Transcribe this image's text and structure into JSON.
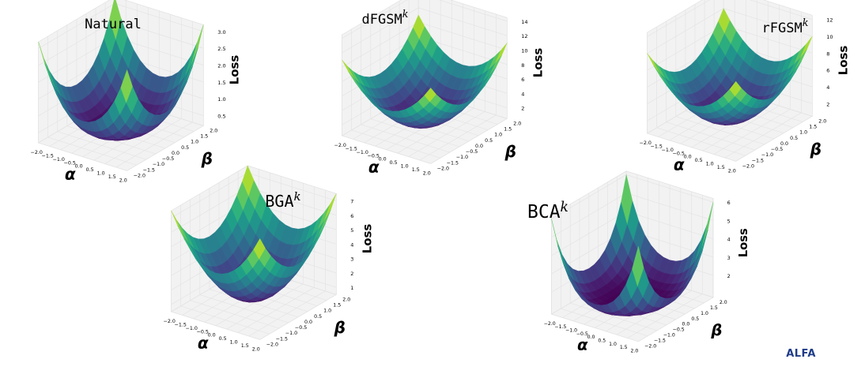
{
  "figure": {
    "logo_text": "ALFA"
  },
  "colors": {
    "viridis": [
      "#440154",
      "#482878",
      "#3e4989",
      "#31688e",
      "#26828e",
      "#1f9e89",
      "#35b779",
      "#6ece58",
      "#b5de2b",
      "#fde725"
    ]
  },
  "chart_data": [
    {
      "type": "surface3d",
      "title": "Natural",
      "title_sup": "",
      "xlabel": "α",
      "ylabel": "β",
      "zlabel": "Loss",
      "x_range": [
        -2,
        2
      ],
      "y_range": [
        -2,
        2
      ],
      "z_range": [
        0.2,
        3.2
      ],
      "x_ticks": [
        "−2.0",
        "−1.5",
        "−1.0",
        "−0.5",
        "0.0",
        "0.5",
        "1.0",
        "1.5",
        "2.0"
      ],
      "y_ticks": [
        "−2.0",
        "−1.5",
        "−1.0",
        "−0.5",
        "0.0",
        "0.5",
        "1.0",
        "1.5",
        "2.0"
      ],
      "z_ticks": [
        "0.5",
        "1.0",
        "1.5",
        "2.0",
        "2.5",
        "3.0"
      ],
      "z_tick_values": [
        0.5,
        1.0,
        1.5,
        2.0,
        2.5,
        3.0
      ],
      "surface_min": 0.3,
      "surface_max": 3.2,
      "shape": "sharp"
    },
    {
      "type": "surface3d",
      "title": "dFGSM",
      "title_sup": "k",
      "xlabel": "α",
      "ylabel": "β",
      "zlabel": "Loss",
      "x_range": [
        -2,
        2
      ],
      "y_range": [
        -2,
        2
      ],
      "z_range": [
        0.5,
        14.5
      ],
      "x_ticks": [
        "−2.0",
        "−1.5",
        "−1.0",
        "−0.5",
        "0.0",
        "0.5",
        "1.0",
        "1.5",
        "2.0"
      ],
      "y_ticks": [
        "−2.0",
        "−1.5",
        "−1.0",
        "−0.5",
        "0.0",
        "0.5",
        "1.0",
        "1.5",
        "2.0"
      ],
      "z_ticks": [
        "2",
        "4",
        "6",
        "8",
        "10",
        "12",
        "14"
      ],
      "z_tick_values": [
        2,
        4,
        6,
        8,
        10,
        12,
        14
      ],
      "surface_min": 1,
      "surface_max": 11,
      "shape": "bowl"
    },
    {
      "type": "surface3d",
      "title": "rFGSM",
      "title_sup": "k",
      "xlabel": "α",
      "ylabel": "β",
      "zlabel": "Loss",
      "x_range": [
        -2,
        2
      ],
      "y_range": [
        -2,
        2
      ],
      "z_range": [
        0.5,
        12.5
      ],
      "x_ticks": [
        "−2.0",
        "−1.5",
        "−1.0",
        "−0.5",
        "0.0",
        "0.5",
        "1.0",
        "1.5",
        "2.0"
      ],
      "y_ticks": [
        "−2.0",
        "−1.5",
        "−1.0",
        "−0.5",
        "0.0",
        "0.5",
        "1.0",
        "1.5",
        "2.0"
      ],
      "z_ticks": [
        "2",
        "4",
        "6",
        "8",
        "10",
        "12"
      ],
      "z_tick_values": [
        2,
        4,
        6,
        8,
        10,
        12
      ],
      "surface_min": 1,
      "surface_max": 10,
      "shape": "bowl"
    },
    {
      "type": "surface3d",
      "title": "BGA",
      "title_sup": "k",
      "xlabel": "α",
      "ylabel": "β",
      "zlabel": "Loss",
      "x_range": [
        -2,
        2
      ],
      "y_range": [
        -2,
        2
      ],
      "z_range": [
        0.5,
        7.5
      ],
      "x_ticks": [
        "−2.0",
        "−1.5",
        "−1.0",
        "−0.5",
        "0.0",
        "0.5",
        "1.0",
        "1.5",
        "2.0"
      ],
      "y_ticks": [
        "−2.0",
        "−1.5",
        "−1.0",
        "−0.5",
        "0.0",
        "0.5",
        "1.0",
        "1.5",
        "2.0"
      ],
      "z_ticks": [
        "1",
        "2",
        "3",
        "4",
        "5",
        "6",
        "7"
      ],
      "z_tick_values": [
        1,
        2,
        3,
        4,
        5,
        6,
        7
      ],
      "surface_min": 0.8,
      "surface_max": 7.5,
      "shape": "bowl"
    },
    {
      "type": "surface3d",
      "title": "BCA",
      "title_sup": "k",
      "xlabel": "α",
      "ylabel": "β",
      "zlabel": "Loss",
      "x_range": [
        -2,
        2
      ],
      "y_range": [
        -2,
        2
      ],
      "z_range": [
        0.8,
        6.2
      ],
      "x_ticks": [
        "−2.0",
        "−1.5",
        "−1.0",
        "−0.5",
        "0.0",
        "0.5",
        "1.0",
        "1.5",
        "2.0"
      ],
      "y_ticks": [
        "−2.0",
        "−1.5",
        "−1.0",
        "−0.5",
        "0.0",
        "0.5",
        "1.0",
        "1.5",
        "2.0"
      ],
      "z_ticks": [
        "2",
        "3",
        "4",
        "5",
        "6"
      ],
      "z_tick_values": [
        2,
        3,
        4,
        5,
        6
      ],
      "surface_min": 1.0,
      "surface_max": 6.0,
      "shape": "flatwell"
    }
  ]
}
